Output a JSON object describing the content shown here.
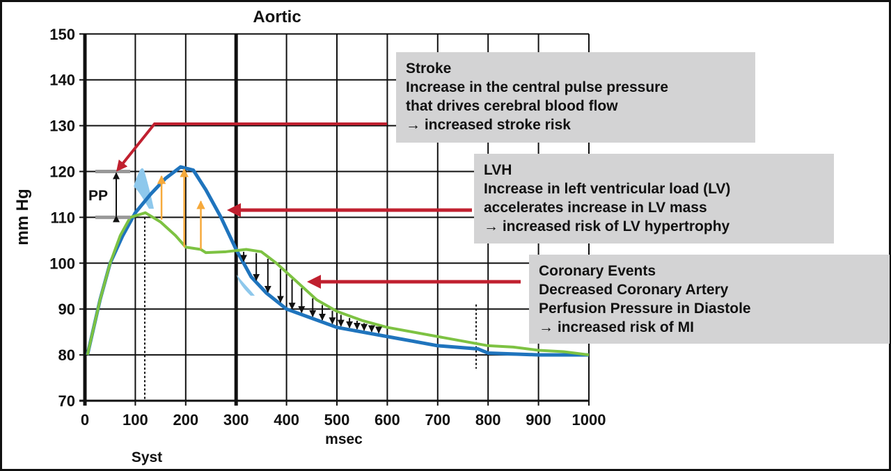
{
  "chart_data": {
    "type": "line",
    "title": "Aortic",
    "xlabel": "msec",
    "ylabel": "mm Hg",
    "xlim": [
      0,
      1000
    ],
    "ylim": [
      70,
      150
    ],
    "xticks": [
      0,
      100,
      200,
      300,
      400,
      500,
      600,
      700,
      800,
      900,
      1000
    ],
    "yticks": [
      70,
      80,
      90,
      100,
      110,
      120,
      130,
      140,
      150
    ],
    "grid": true,
    "x_annotation": "Syst",
    "pp_label": "PP",
    "pp_range": [
      110,
      120
    ],
    "colors": {
      "blue": "#1f74bd",
      "green": "#7dc242",
      "orange": "#f6a93b",
      "red": "#c0202f",
      "light_blue": "#8ec8ec",
      "box": "#d3d3d4"
    },
    "series": [
      {
        "color": "#1f74bd",
        "points": [
          [
            5,
            80
          ],
          [
            30,
            92
          ],
          [
            50,
            100
          ],
          [
            75,
            106
          ],
          [
            100,
            111
          ],
          [
            130,
            115
          ],
          [
            160,
            118.5
          ],
          [
            190,
            121
          ],
          [
            215,
            120.3
          ],
          [
            240,
            116
          ],
          [
            270,
            110
          ],
          [
            300,
            103
          ],
          [
            330,
            97
          ],
          [
            360,
            93.5
          ],
          [
            400,
            90
          ],
          [
            450,
            88
          ],
          [
            500,
            86
          ],
          [
            550,
            85
          ],
          [
            600,
            84
          ],
          [
            650,
            83
          ],
          [
            700,
            82
          ],
          [
            780,
            81.3
          ],
          [
            800,
            80.4
          ],
          [
            900,
            80
          ],
          [
            1000,
            80
          ]
        ]
      },
      {
        "color": "#7dc242",
        "points": [
          [
            5,
            80
          ],
          [
            30,
            92
          ],
          [
            50,
            100
          ],
          [
            70,
            106
          ],
          [
            90,
            110
          ],
          [
            120,
            111
          ],
          [
            150,
            109
          ],
          [
            180,
            106
          ],
          [
            200,
            103.5
          ],
          [
            230,
            103
          ],
          [
            240,
            102.3
          ],
          [
            280,
            102.5
          ],
          [
            320,
            103
          ],
          [
            350,
            102.5
          ],
          [
            380,
            100
          ],
          [
            420,
            96
          ],
          [
            460,
            92
          ],
          [
            500,
            89.5
          ],
          [
            550,
            87.5
          ],
          [
            600,
            86
          ],
          [
            700,
            84
          ],
          [
            800,
            82
          ],
          [
            850,
            81.7
          ],
          [
            900,
            81
          ],
          [
            950,
            80.7
          ],
          [
            1000,
            80
          ]
        ]
      }
    ],
    "orange_arrows": [
      [
        152,
        109.5,
        119
      ],
      [
        197,
        103.5,
        120.5
      ],
      [
        230,
        103,
        113.5
      ]
    ],
    "black_arrows_ms": [
      315,
      340,
      363,
      388,
      411,
      430,
      452,
      471,
      491,
      508,
      525,
      540,
      554,
      569,
      583
    ],
    "annotations": [
      {
        "lines": [
          "Stroke",
          "Increase in the central pulse pressure",
          "that drives cerebral blood flow",
          "→ increased stroke risk"
        ]
      },
      {
        "lines": [
          "LVH",
          "Increase in left ventricular load (LV)",
          "accelerates increase in LV mass",
          "→ increased risk of LV hypertrophy"
        ]
      },
      {
        "lines": [
          "Coronary Events",
          "Decreased Coronary Artery",
          "Perfusion Pressure in Diastole",
          "→ increased risk of MI"
        ]
      }
    ]
  }
}
